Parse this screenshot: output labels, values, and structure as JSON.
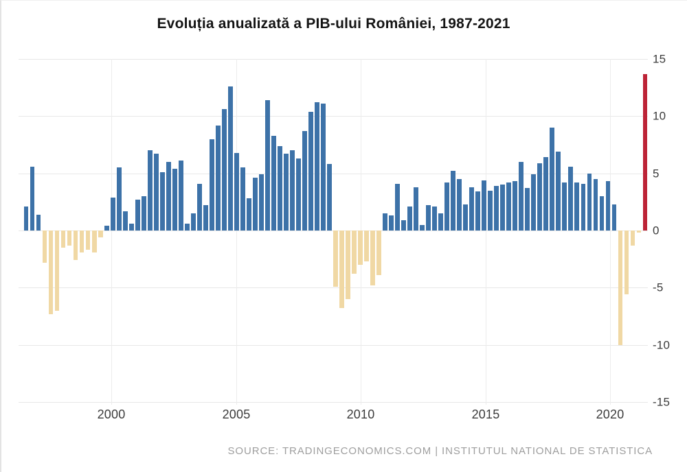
{
  "title": "Evoluția anualizată a PIB-ului României, 1987-2021",
  "source_line": "SOURCE: TRADINGECONOMICS.COM | INSTITUTUL NATIONAL DE STATISTICA",
  "colors": {
    "positive_bar": "#3d72a8",
    "negative_bar": "#f0d8a4",
    "latest_bar": "#bd2437",
    "gridline": "#e7e7e7",
    "axis_text": "#3b3b3b",
    "source_text": "#9e9e9e"
  },
  "chart_data": {
    "type": "bar",
    "title": "Evoluția anualizată a PIB-ului României, 1987-2021",
    "frequency": "quarterly",
    "period_start": "1996-Q3",
    "xlabel": "",
    "ylabel": "",
    "ylim": [
      -15,
      15
    ],
    "grid": true,
    "y_ticks": [
      15,
      10,
      5,
      0,
      -5,
      -10,
      -15
    ],
    "y_tick_labels": [
      "15",
      "10",
      "5",
      "0",
      "-5",
      "-10",
      "-15"
    ],
    "x_tick_labels": [
      "2000",
      "2005",
      "2010",
      "2015",
      "2020"
    ],
    "legend": "none",
    "note": "last bar highlighted in red",
    "values": [
      2.1,
      5.6,
      1.4,
      -2.8,
      -7.3,
      -7.0,
      -1.5,
      -1.3,
      -2.6,
      -1.9,
      -1.7,
      -1.9,
      -0.6,
      0.4,
      2.9,
      5.5,
      1.7,
      0.6,
      2.7,
      3.0,
      7.0,
      6.7,
      5.1,
      6.0,
      5.4,
      6.1,
      0.6,
      1.5,
      4.1,
      2.2,
      8.0,
      9.2,
      10.6,
      12.6,
      6.8,
      5.5,
      2.8,
      4.6,
      4.9,
      11.4,
      8.3,
      7.4,
      6.7,
      7.0,
      6.3,
      8.7,
      10.4,
      11.2,
      11.1,
      5.8,
      -4.9,
      -6.8,
      -6.0,
      -3.8,
      -3.0,
      -2.7,
      -4.8,
      -3.9,
      1.5,
      1.3,
      4.1,
      0.9,
      2.1,
      3.8,
      0.5,
      2.2,
      2.1,
      1.5,
      4.2,
      5.2,
      4.5,
      2.3,
      3.8,
      3.4,
      4.4,
      3.5,
      3.9,
      4.0,
      4.2,
      4.3,
      6.0,
      3.7,
      4.9,
      5.9,
      6.4,
      9.0,
      6.9,
      4.2,
      5.6,
      4.2,
      4.1,
      5.0,
      4.5,
      3.0,
      4.3,
      2.3,
      -10.0,
      -5.6,
      -1.3,
      -0.2,
      13.7
    ]
  }
}
